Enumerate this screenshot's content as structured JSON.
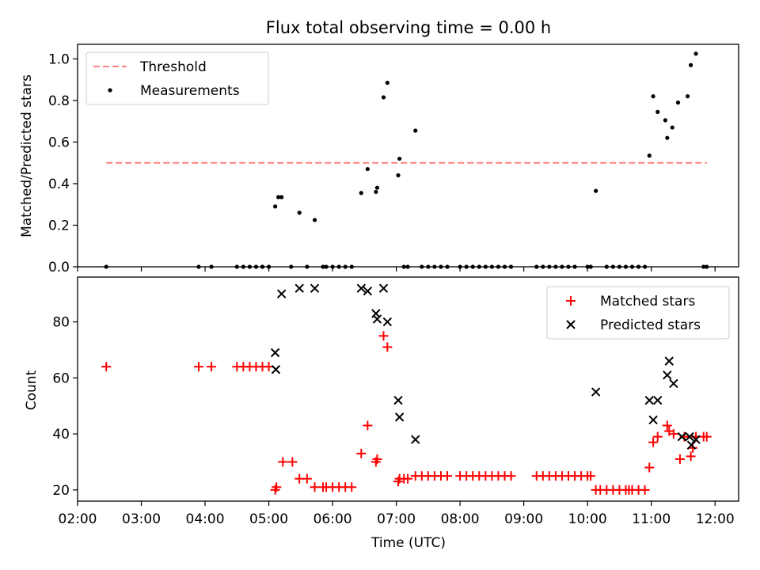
{
  "title": "Flux total observing time = 0.00 h",
  "chart_data": [
    {
      "type": "scatter",
      "ylabel": "Matched/Predicted stars",
      "xlabel": "",
      "ylim": [
        0,
        1.07
      ],
      "yticks": [
        0.0,
        0.2,
        0.4,
        0.6,
        0.8,
        1.0
      ],
      "ytick_labels": [
        "0.0",
        "0.2",
        "0.4",
        "0.6",
        "0.8",
        "1.0"
      ],
      "legend_position": "upper-left",
      "series": [
        {
          "name": "Threshold",
          "kind": "dashed-line",
          "color": "#ff7f7f",
          "x": [
            2.45,
            11.87
          ],
          "y": [
            0.5,
            0.5
          ]
        },
        {
          "name": "Measurements",
          "kind": "dot",
          "color": "#000000",
          "x": [
            2.45,
            3.9,
            4.1,
            4.5,
            4.6,
            4.7,
            4.8,
            4.9,
            5.0,
            5.1,
            5.15,
            5.2,
            5.35,
            5.48,
            5.6,
            5.72,
            5.85,
            5.9,
            6.0,
            6.1,
            6.2,
            6.3,
            6.45,
            6.55,
            6.68,
            6.7,
            6.8,
            6.86,
            7.03,
            7.05,
            7.12,
            7.18,
            7.3,
            7.4,
            7.5,
            7.6,
            7.7,
            7.8,
            8.0,
            8.1,
            8.2,
            8.3,
            8.4,
            8.5,
            8.6,
            8.7,
            8.8,
            9.2,
            9.3,
            9.4,
            9.5,
            9.6,
            9.7,
            9.8,
            10.0,
            10.05,
            10.13,
            10.3,
            10.4,
            10.5,
            10.6,
            10.7,
            10.8,
            10.9,
            10.97,
            11.03,
            11.1,
            11.22,
            11.25,
            11.33,
            11.42,
            11.57,
            11.62,
            11.7,
            11.82,
            11.87
          ],
          "y": [
            0.0,
            0.0,
            0.0,
            0.0,
            0.0,
            0.0,
            0.0,
            0.0,
            0.0,
            0.29,
            0.335,
            0.335,
            0.0,
            0.26,
            0.0,
            0.225,
            0.0,
            0.0,
            0.0,
            0.0,
            0.0,
            0.0,
            0.355,
            0.47,
            0.36,
            0.38,
            0.815,
            0.885,
            0.44,
            0.52,
            0.0,
            0.0,
            0.655,
            0.0,
            0.0,
            0.0,
            0.0,
            0.0,
            0.0,
            0.0,
            0.0,
            0.0,
            0.0,
            0.0,
            0.0,
            0.0,
            0.0,
            0.0,
            0.0,
            0.0,
            0.0,
            0.0,
            0.0,
            0.0,
            0.0,
            0.0,
            0.365,
            0.0,
            0.0,
            0.0,
            0.0,
            0.0,
            0.0,
            0.0,
            0.535,
            0.82,
            0.745,
            0.705,
            0.62,
            0.67,
            0.79,
            0.82,
            0.97,
            1.025,
            0.0,
            0.0
          ]
        }
      ]
    },
    {
      "type": "scatter",
      "ylabel": "Count",
      "xlabel": "Time (UTC)",
      "ylim": [
        16,
        96
      ],
      "yticks": [
        20,
        40,
        60,
        80
      ],
      "ytick_labels": [
        "20",
        "40",
        "60",
        "80"
      ],
      "xlim": [
        2.0,
        12.37
      ],
      "xticks": [
        2,
        3,
        4,
        5,
        6,
        7,
        8,
        9,
        10,
        11,
        12
      ],
      "xtick_labels": [
        "02:00",
        "03:00",
        "04:00",
        "05:00",
        "06:00",
        "07:00",
        "08:00",
        "09:00",
        "10:00",
        "11:00",
        "12:00"
      ],
      "legend_position": "upper-right",
      "series": [
        {
          "name": "Matched stars",
          "kind": "plus",
          "color": "#ff0000",
          "x": [
            2.45,
            3.9,
            4.1,
            4.5,
            4.6,
            4.7,
            4.8,
            4.9,
            5.0,
            5.1,
            5.12,
            5.22,
            5.37,
            5.48,
            5.6,
            5.72,
            5.85,
            5.9,
            6.0,
            6.1,
            6.2,
            6.3,
            6.45,
            6.55,
            6.68,
            6.7,
            6.8,
            6.86,
            7.03,
            7.05,
            7.12,
            7.18,
            7.3,
            7.4,
            7.5,
            7.6,
            7.7,
            7.8,
            8.0,
            8.1,
            8.2,
            8.3,
            8.4,
            8.5,
            8.6,
            8.7,
            8.8,
            9.2,
            9.3,
            9.4,
            9.5,
            9.6,
            9.7,
            9.8,
            9.9,
            10.0,
            10.05,
            10.13,
            10.2,
            10.3,
            10.4,
            10.5,
            10.6,
            10.65,
            10.7,
            10.8,
            10.9,
            10.97,
            11.03,
            11.1,
            11.25,
            11.28,
            11.35,
            11.45,
            11.52,
            11.62,
            11.65,
            11.7,
            11.82,
            11.87
          ],
          "y": [
            64,
            64,
            64,
            64,
            64,
            64,
            64,
            64,
            64,
            20,
            21,
            30,
            30,
            24,
            24,
            21,
            21,
            21,
            21,
            21,
            21,
            21,
            33,
            43,
            30,
            31,
            75,
            71,
            23,
            24,
            24,
            24,
            25,
            25,
            25,
            25,
            25,
            25,
            25,
            25,
            25,
            25,
            25,
            25,
            25,
            25,
            25,
            25,
            25,
            25,
            25,
            25,
            25,
            25,
            25,
            25,
            25,
            20,
            20,
            20,
            20,
            20,
            20,
            20,
            20,
            20,
            20,
            28,
            37,
            39,
            43,
            41,
            40,
            31,
            39,
            32,
            35,
            39,
            39,
            39
          ]
        },
        {
          "name": "Predicted stars",
          "kind": "x",
          "color": "#000000",
          "x": [
            5.1,
            5.11,
            5.2,
            5.48,
            5.72,
            6.45,
            6.55,
            6.68,
            6.7,
            6.8,
            6.86,
            7.03,
            7.05,
            7.3,
            10.13,
            10.97,
            11.03,
            11.1,
            11.25,
            11.28,
            11.35,
            11.48,
            11.6,
            11.63,
            11.7
          ],
          "y": [
            69,
            63,
            90,
            92,
            92,
            92,
            91,
            83,
            81,
            92,
            80,
            52,
            46,
            38,
            55,
            52,
            45,
            52,
            61,
            66,
            58,
            39,
            39,
            36,
            38
          ]
        }
      ]
    }
  ]
}
